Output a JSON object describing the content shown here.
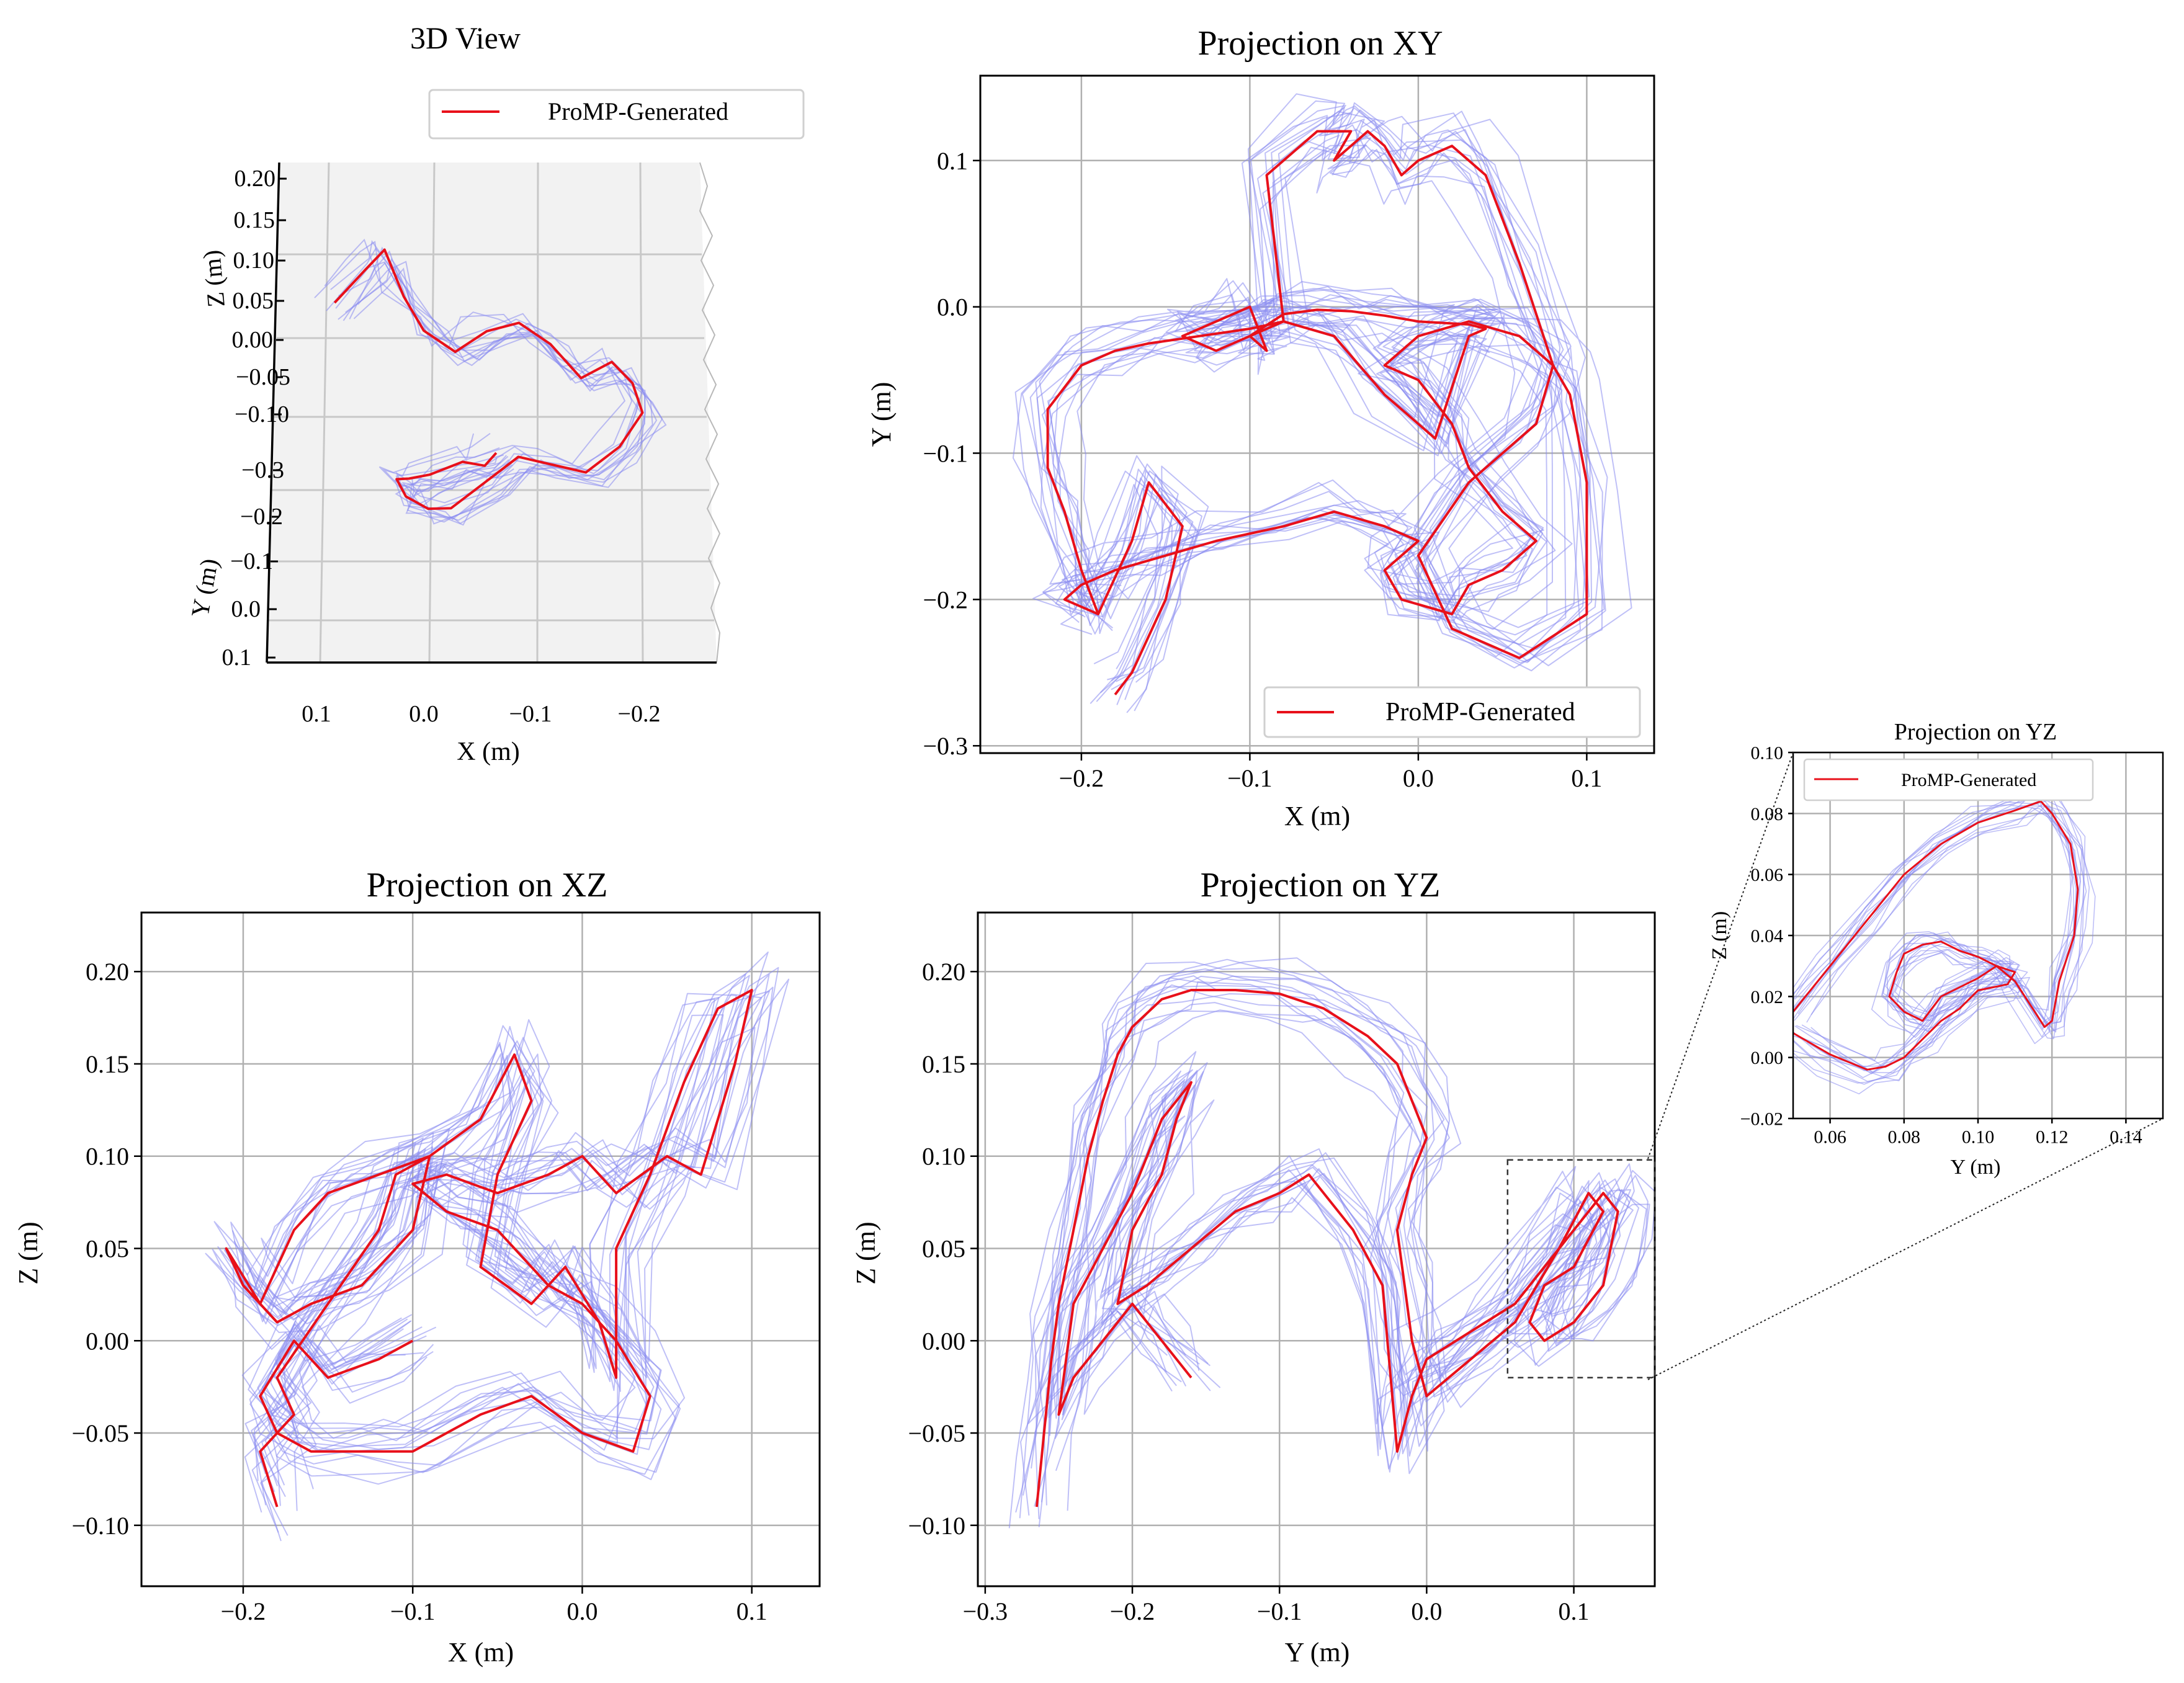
{
  "colors": {
    "generated": "#e8101a",
    "demonstrations": "#8a8cf0",
    "grid": "#b0b0b0",
    "pane": "#f2f2f2"
  },
  "chart_data": [
    {
      "id": "view3d",
      "type": "line",
      "title": "3D View",
      "legend": {
        "label": "ProMP-Generated",
        "placement": "top-right"
      },
      "xlabel": "X (m)",
      "ylabel": "Y (m)",
      "zlabel": "Z (m)",
      "xticks": [
        "0.1",
        "0.0",
        "−0.1",
        "−0.2"
      ],
      "yticks": [
        "−0.3",
        "−0.2",
        "−0.1",
        "0.0",
        "0.1"
      ],
      "zticks": [
        "0.20",
        "0.15",
        "0.10",
        "0.05",
        "0.00",
        "−0.05",
        "−0.10"
      ],
      "xlim": [
        0.15,
        -0.27
      ],
      "ylim": [
        -0.33,
        0.12
      ],
      "zlim": [
        -0.12,
        0.21
      ],
      "grid": true,
      "series": [
        {
          "name": "ProMP-Generated",
          "x": [
            0.09,
            0.06,
            0.04,
            0.02,
            0.0,
            -0.03,
            -0.06,
            -0.09,
            -0.12,
            -0.15,
            -0.18,
            -0.2,
            -0.21,
            -0.19,
            -0.16,
            -0.13,
            -0.1,
            -0.07,
            -0.04,
            -0.02,
            0.0,
            0.01,
            0.0,
            -0.02,
            -0.05,
            -0.07,
            -0.08
          ],
          "y": [
            0.1,
            0.08,
            0.05,
            0.02,
            0.0,
            -0.01,
            -0.02,
            -0.02,
            -0.03,
            -0.05,
            -0.07,
            -0.08,
            -0.09,
            -0.11,
            -0.13,
            -0.15,
            -0.17,
            -0.19,
            -0.21,
            -0.23,
            -0.24,
            -0.22,
            -0.2,
            -0.21,
            -0.2,
            -0.19,
            -0.18
          ],
          "z": [
            0.0,
            0.05,
            0.09,
            0.05,
            0.02,
            0.0,
            0.03,
            0.04,
            0.02,
            -0.01,
            0.02,
            0.0,
            -0.03,
            -0.06,
            -0.08,
            -0.06,
            -0.04,
            -0.06,
            -0.08,
            -0.07,
            -0.05,
            -0.04,
            -0.05,
            -0.04,
            -0.03,
            -0.04,
            -0.03
          ]
        }
      ]
    },
    {
      "id": "xy",
      "type": "line",
      "title": "Projection on XY",
      "xlabel": "X (m)",
      "ylabel": "Y (m)",
      "xlim": [
        -0.26,
        0.14
      ],
      "ylim": [
        -0.305,
        0.158
      ],
      "xticks": [
        -0.2,
        -0.1,
        0.0,
        0.1
      ],
      "xticklabels": [
        "−0.2",
        "−0.1",
        "0.0",
        "0.1"
      ],
      "yticks": [
        -0.3,
        -0.2,
        -0.1,
        0.0,
        0.1
      ],
      "yticklabels": [
        "−0.3",
        "−0.2",
        "−0.1",
        "0.0",
        "0.1"
      ],
      "grid": true,
      "legend": {
        "label": "ProMP-Generated",
        "placement": "lower-right"
      },
      "series": [
        {
          "name": "ProMP-Generated",
          "x": [
            -0.18,
            -0.17,
            -0.15,
            -0.14,
            -0.16,
            -0.17,
            -0.19,
            -0.2,
            -0.21,
            -0.22,
            -0.22,
            -0.2,
            -0.18,
            -0.16,
            -0.13,
            -0.1,
            -0.08,
            -0.1,
            -0.12,
            -0.14,
            -0.12,
            -0.1,
            -0.09,
            -0.1,
            -0.08,
            -0.06,
            -0.04,
            -0.02,
            0.0,
            0.03,
            0.04,
            0.03,
            0.01,
            -0.02,
            -0.05,
            -0.08,
            -0.09,
            -0.06,
            -0.04,
            -0.05,
            -0.04,
            -0.03,
            -0.02,
            -0.01,
            0.0,
            0.02,
            0.04,
            0.06,
            0.08,
            0.07,
            0.03,
            0.0,
            0.02,
            0.06,
            0.1,
            0.1,
            0.09,
            0.08,
            0.06,
            0.03,
            0.0,
            -0.02,
            0.0,
            0.02,
            0.03,
            0.05,
            0.07,
            0.05,
            0.03,
            0.02,
            -0.01,
            -0.02,
            0.0,
            -0.02,
            -0.05,
            -0.08,
            -0.12,
            -0.15,
            -0.18,
            -0.2,
            -0.21,
            -0.19
          ],
          "y": [
            -0.265,
            -0.25,
            -0.2,
            -0.15,
            -0.12,
            -0.16,
            -0.21,
            -0.18,
            -0.14,
            -0.11,
            -0.07,
            -0.04,
            -0.03,
            -0.025,
            -0.02,
            -0.015,
            -0.01,
            -0.02,
            -0.03,
            -0.02,
            -0.01,
            -0.0,
            -0.03,
            -0.02,
            -0.005,
            -0.002,
            -0.003,
            -0.006,
            -0.01,
            -0.012,
            -0.015,
            -0.02,
            -0.09,
            -0.06,
            -0.02,
            -0.01,
            0.09,
            0.12,
            0.12,
            0.1,
            0.11,
            0.12,
            0.11,
            0.09,
            0.1,
            0.11,
            0.09,
            0.03,
            -0.04,
            -0.08,
            -0.12,
            -0.17,
            -0.22,
            -0.24,
            -0.21,
            -0.12,
            -0.06,
            -0.04,
            -0.02,
            -0.01,
            -0.02,
            -0.04,
            -0.05,
            -0.08,
            -0.11,
            -0.14,
            -0.16,
            -0.18,
            -0.19,
            -0.21,
            -0.2,
            -0.18,
            -0.16,
            -0.15,
            -0.14,
            -0.15,
            -0.16,
            -0.17,
            -0.18,
            -0.19,
            -0.2,
            -0.21
          ]
        }
      ]
    },
    {
      "id": "xz",
      "type": "line",
      "title": "Projection on XZ",
      "xlabel": "X (m)",
      "ylabel": "Z (m)",
      "xlim": [
        -0.26,
        0.14
      ],
      "ylim": [
        -0.133,
        0.232
      ],
      "xticks": [
        -0.2,
        -0.1,
        0.0,
        0.1
      ],
      "xticklabels": [
        "−0.2",
        "−0.1",
        "0.0",
        "0.1"
      ],
      "yticks": [
        -0.1,
        -0.05,
        0.0,
        0.05,
        0.1,
        0.15,
        0.2
      ],
      "yticklabels": [
        "−0.10",
        "−0.05",
        "0.00",
        "0.05",
        "0.10",
        "0.15",
        "0.20"
      ],
      "grid": true,
      "series": [
        {
          "name": "ProMP-Generated",
          "x": [
            -0.18,
            -0.19,
            -0.17,
            -0.18,
            -0.15,
            -0.12,
            -0.11,
            -0.09,
            -0.1,
            -0.13,
            -0.16,
            -0.18,
            -0.2,
            -0.21,
            -0.19,
            -0.17,
            -0.15,
            -0.12,
            -0.09,
            -0.06,
            -0.04,
            -0.03,
            -0.05,
            -0.06,
            -0.03,
            -0.01,
            0.01,
            0.02,
            0.02,
            0.04,
            0.06,
            0.08,
            0.1,
            0.09,
            0.07,
            0.05,
            0.02,
            0.0,
            -0.02,
            -0.05,
            -0.08,
            -0.1,
            -0.08,
            -0.05,
            -0.02,
            0.0,
            0.02,
            0.04,
            0.03,
            0.0,
            -0.03,
            -0.06,
            -0.1,
            -0.13,
            -0.16,
            -0.18,
            -0.19,
            -0.17,
            -0.15,
            -0.12,
            -0.1
          ],
          "y": [
            -0.09,
            -0.06,
            -0.04,
            -0.02,
            0.02,
            0.06,
            0.09,
            0.1,
            0.06,
            0.03,
            0.02,
            0.01,
            0.03,
            0.05,
            0.02,
            0.06,
            0.08,
            0.09,
            0.1,
            0.12,
            0.155,
            0.13,
            0.09,
            0.04,
            0.02,
            0.04,
            0.01,
            -0.02,
            0.05,
            0.09,
            0.14,
            0.18,
            0.19,
            0.15,
            0.09,
            0.1,
            0.08,
            0.1,
            0.09,
            0.08,
            0.09,
            0.085,
            0.07,
            0.06,
            0.03,
            0.02,
            0.0,
            -0.03,
            -0.06,
            -0.05,
            -0.03,
            -0.04,
            -0.06,
            -0.06,
            -0.06,
            -0.05,
            -0.03,
            0.0,
            -0.02,
            -0.01,
            0.0
          ]
        }
      ]
    },
    {
      "id": "yz",
      "type": "line",
      "title": "Projection on YZ",
      "xlabel": "Y (m)",
      "ylabel": "Z (m)",
      "xlim": [
        -0.305,
        0.155
      ],
      "ylim": [
        -0.133,
        0.232
      ],
      "xticks": [
        -0.3,
        -0.2,
        -0.1,
        0.0,
        0.1
      ],
      "xticklabels": [
        "−0.3",
        "−0.2",
        "−0.1",
        "0.0",
        "0.1"
      ],
      "yticks": [
        -0.1,
        -0.05,
        0.0,
        0.05,
        0.1,
        0.15,
        0.2
      ],
      "yticklabels": [
        "−0.10",
        "−0.05",
        "0.00",
        "0.05",
        "0.10",
        "0.15",
        "0.20"
      ],
      "grid": true,
      "inset_box": {
        "x": [
          0.055,
          0.155
        ],
        "y": [
          -0.02,
          0.098
        ]
      },
      "series": [
        {
          "name": "ProMP-Generated",
          "x": [
            -0.265,
            -0.26,
            -0.255,
            -0.25,
            -0.24,
            -0.23,
            -0.22,
            -0.21,
            -0.2,
            -0.18,
            -0.16,
            -0.13,
            -0.1,
            -0.07,
            -0.04,
            -0.02,
            -0.01,
            0.0,
            -0.01,
            -0.02,
            -0.015,
            -0.01,
            0.0,
            0.03,
            0.06,
            0.09,
            0.11,
            0.12,
            0.1,
            0.08,
            0.07,
            0.08,
            0.1,
            0.12,
            0.125,
            0.13,
            0.12,
            0.1,
            0.06,
            0.02,
            0.0,
            -0.01,
            -0.02,
            -0.03,
            -0.05,
            -0.08,
            -0.1,
            -0.13,
            -0.16,
            -0.19,
            -0.21,
            -0.2,
            -0.18,
            -0.17,
            -0.16,
            -0.18,
            -0.2,
            -0.22,
            -0.24,
            -0.25,
            -0.24,
            -0.22,
            -0.2,
            -0.18,
            -0.16
          ],
          "y": [
            -0.09,
            -0.05,
            -0.01,
            0.02,
            0.06,
            0.1,
            0.13,
            0.155,
            0.17,
            0.185,
            0.19,
            0.19,
            0.188,
            0.18,
            0.165,
            0.15,
            0.13,
            0.11,
            0.09,
            0.06,
            0.03,
            0.0,
            -0.03,
            -0.01,
            0.01,
            0.05,
            0.08,
            0.07,
            0.04,
            0.03,
            0.01,
            0.0,
            0.01,
            0.03,
            0.05,
            0.07,
            0.08,
            0.06,
            0.02,
            0.0,
            -0.01,
            -0.03,
            -0.06,
            0.03,
            0.06,
            0.09,
            0.08,
            0.07,
            0.05,
            0.03,
            0.02,
            0.06,
            0.09,
            0.12,
            0.14,
            0.12,
            0.08,
            0.05,
            0.02,
            -0.04,
            -0.02,
            0.0,
            0.02,
            0.0,
            -0.02
          ]
        }
      ]
    },
    {
      "id": "inset",
      "type": "line",
      "title": "Projection on YZ",
      "xlabel": "Y (m)",
      "ylabel": "Z (m)",
      "xlim": [
        0.05,
        0.15
      ],
      "ylim": [
        -0.02,
        0.1
      ],
      "xticks": [
        0.06,
        0.08,
        0.1,
        0.12,
        0.14
      ],
      "xticklabels": [
        "0.06",
        "0.08",
        "0.10",
        "0.12",
        "0.14"
      ],
      "yticks": [
        -0.02,
        0.0,
        0.02,
        0.04,
        0.06,
        0.08,
        0.1
      ],
      "yticklabels": [
        "−0.02",
        "0.00",
        "0.02",
        "0.04",
        "0.06",
        "0.08",
        "0.10"
      ],
      "grid": true,
      "legend": {
        "label": "ProMP-Generated",
        "placement": "top-left"
      },
      "series": [
        {
          "name": "ProMP-Generated",
          "x": [
            0.05,
            0.06,
            0.07,
            0.08,
            0.09,
            0.1,
            0.11,
            0.117,
            0.12,
            0.125,
            0.127,
            0.126,
            0.122,
            0.12,
            0.118,
            0.11,
            0.105,
            0.1,
            0.095,
            0.09,
            0.085,
            0.08,
            0.078,
            0.076,
            0.08,
            0.085,
            0.09,
            0.1,
            0.105,
            0.11,
            0.108,
            0.1,
            0.095,
            0.09,
            0.085,
            0.08,
            0.075,
            0.07,
            0.06,
            0.05
          ],
          "y": [
            0.015,
            0.03,
            0.045,
            0.06,
            0.07,
            0.077,
            0.081,
            0.084,
            0.08,
            0.07,
            0.055,
            0.04,
            0.025,
            0.012,
            0.01,
            0.025,
            0.03,
            0.033,
            0.035,
            0.038,
            0.037,
            0.034,
            0.028,
            0.02,
            0.015,
            0.012,
            0.02,
            0.026,
            0.03,
            0.028,
            0.024,
            0.022,
            0.016,
            0.012,
            0.006,
            0.0,
            -0.003,
            -0.004,
            0.001,
            0.008
          ]
        }
      ]
    }
  ]
}
